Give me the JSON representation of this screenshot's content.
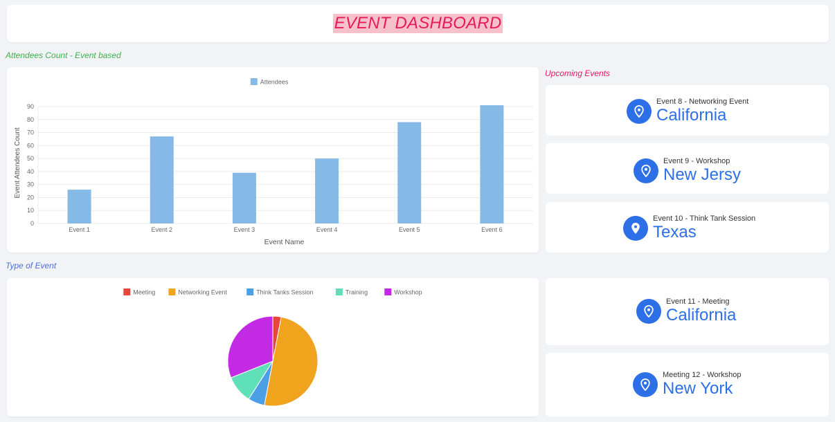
{
  "header": {
    "title": "EVENT DASHBOARD"
  },
  "sections": {
    "attendees": "Attendees Count - Event based",
    "upcoming": "Upcoming Events",
    "type": "Type of Event"
  },
  "colors": {
    "title": "#e8185c",
    "title_bg": "#f6c1cb",
    "accent": "#2c6fe6",
    "bar": "#85b9e6",
    "green_label": "#3fb24a"
  },
  "chart_data": [
    {
      "type": "bar",
      "legend": [
        "Attendees"
      ],
      "legend_position": "top-center",
      "categories": [
        "Event 1",
        "Event 2",
        "Event 3",
        "Event 4",
        "Event 5",
        "Event 6"
      ],
      "series": [
        {
          "name": "Attendees",
          "values": [
            26,
            67,
            39,
            50,
            78,
            91
          ],
          "color": "#85b9e6"
        }
      ],
      "xlabel": "Event Name",
      "ylabel": "Event Attendees Count",
      "ylim": [
        0,
        90
      ],
      "yticks": [
        "0",
        "10",
        "20",
        "30",
        "40",
        "50",
        "60",
        "70",
        "80",
        "90"
      ],
      "grid": true
    },
    {
      "type": "pie",
      "legend_position": "top-center",
      "slices": [
        {
          "label": "Meeting",
          "value": 3,
          "color": "#e8463a"
        },
        {
          "label": "Networking Event",
          "value": 50,
          "color": "#f0a31d"
        },
        {
          "label": "Think Tanks Session",
          "value": 6,
          "color": "#4d9fe5"
        },
        {
          "label": "Training",
          "value": 10,
          "color": "#60e0b8"
        },
        {
          "label": "Workshop",
          "value": 31,
          "color": "#c22ae3"
        }
      ]
    }
  ],
  "upcoming_events": [
    {
      "subtitle": "Event 8 - Networking Event",
      "location": "California",
      "icon": "map-pin-icon"
    },
    {
      "subtitle": "Event 9 - Workshop",
      "location": "New Jersy",
      "icon": "map-pin-icon"
    },
    {
      "subtitle": "Event 10 - Think Tank Session",
      "location": "Texas",
      "icon": "map-pin-icon"
    },
    {
      "subtitle": "Event 11 - Meeting",
      "location": "California",
      "icon": "map-pin-icon"
    },
    {
      "subtitle": "Meeting 12 - Workshop",
      "location": "New York",
      "icon": "map-pin-icon"
    }
  ]
}
